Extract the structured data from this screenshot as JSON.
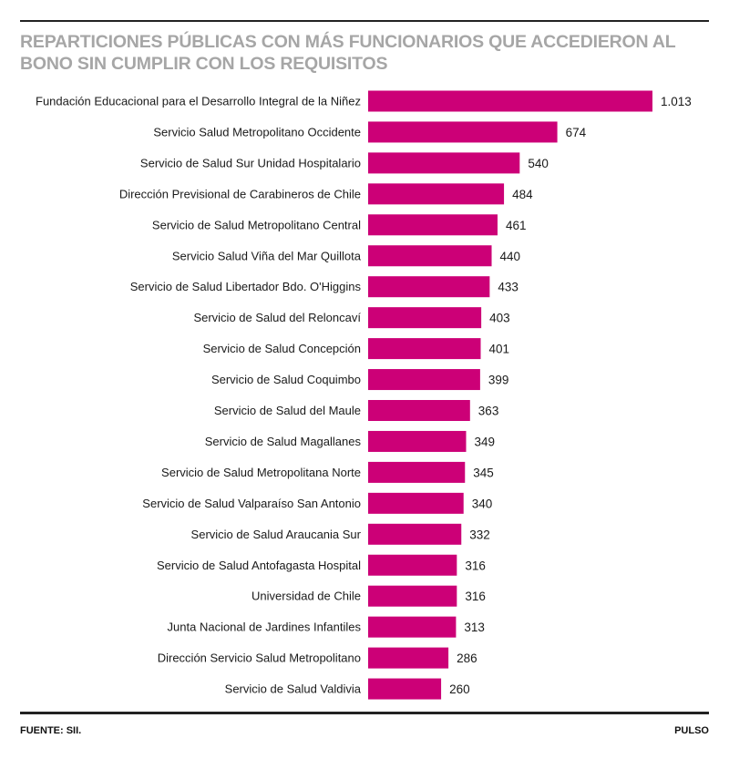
{
  "title": "REPARTICIONES PÚBLICAS CON MÁS FUNCIONARIOS QUE ACCEDIERON AL BONO SIN CUMPLIR CON LOS REQUISITOS",
  "source": "FUENTE: SII.",
  "brand": "PULSO",
  "colors": {
    "bar": "#cc0077",
    "title": "#a6a6a6",
    "rule": "#222222"
  },
  "chart_data": {
    "type": "bar",
    "orientation": "horizontal",
    "categories": [
      "Fundación Educacional para el Desarrollo Integral de la Niñez",
      "Servicio Salud Metropolitano Occidente",
      "Servicio de Salud Sur Unidad Hospitalario",
      "Dirección Previsional de Carabineros de Chile",
      "Servicio de Salud Metropolitano Central",
      "Servicio Salud Viña del Mar Quillota",
      "Servicio de Salud Libertador Bdo. O'Higgins",
      "Servicio de Salud del Reloncaví",
      "Servicio de Salud Concepción",
      "Servicio de Salud Coquimbo",
      "Servicio de Salud del Maule",
      "Servicio de Salud Magallanes",
      "Servicio de Salud Metropolitana Norte",
      "Servicio de Salud Valparaíso San Antonio",
      "Servicio de Salud Araucania Sur",
      "Servicio de Salud Antofagasta Hospital",
      "Universidad de Chile",
      "Junta Nacional de Jardines Infantiles",
      "Dirección Servicio Salud Metropolitano",
      "Servicio de Salud Valdivia"
    ],
    "values": [
      1013,
      674,
      540,
      484,
      461,
      440,
      433,
      403,
      401,
      399,
      363,
      349,
      345,
      340,
      332,
      316,
      316,
      313,
      286,
      260
    ],
    "value_labels": [
      "1.013",
      "674",
      "540",
      "484",
      "461",
      "440",
      "433",
      "403",
      "401",
      "399",
      "363",
      "349",
      "345",
      "340",
      "332",
      "316",
      "316",
      "313",
      "286",
      "260"
    ],
    "xlim": [
      0,
      1013
    ],
    "grid": false,
    "legend": "none"
  }
}
